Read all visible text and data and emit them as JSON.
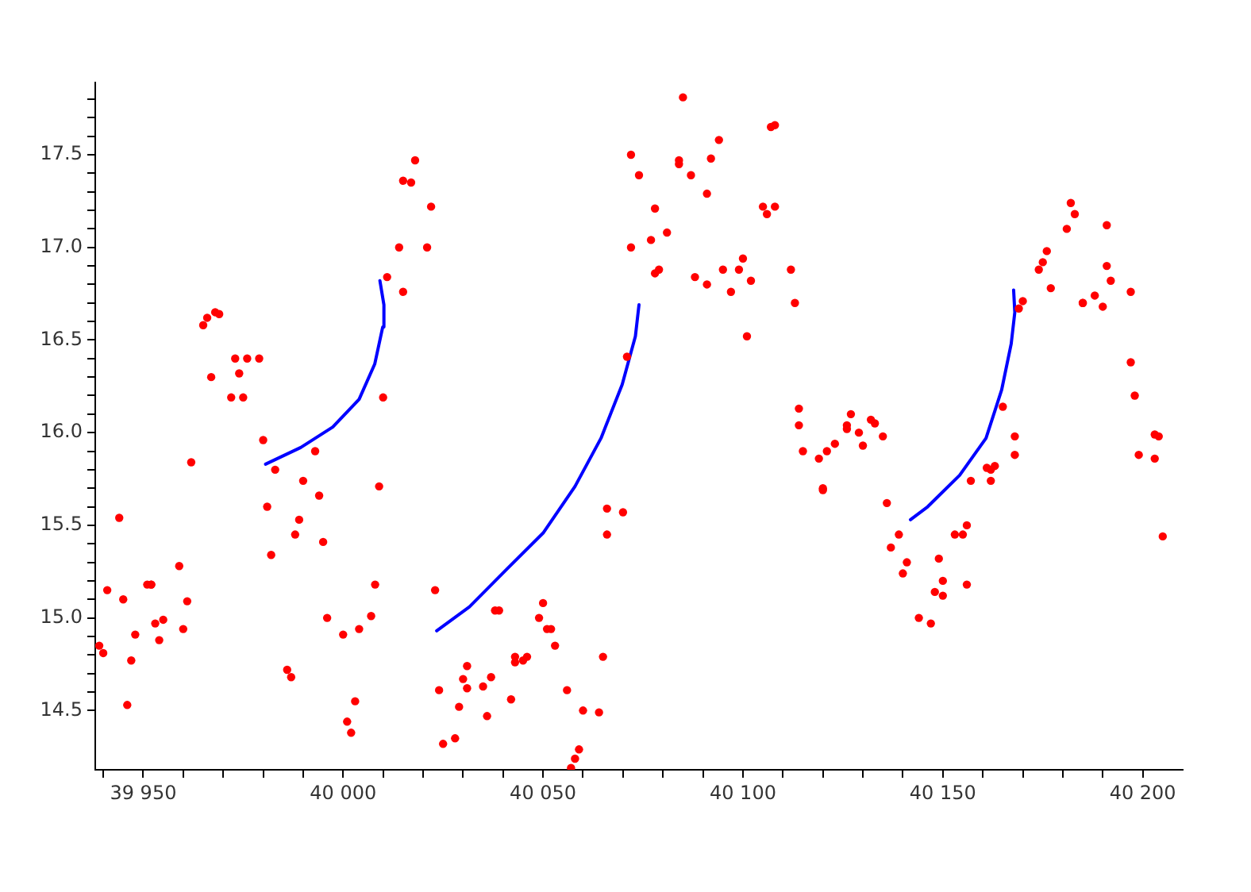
{
  "chart_data": {
    "type": "scatter",
    "xlim": [
      39938,
      40210
    ],
    "ylim": [
      14.18,
      17.89
    ],
    "xticks": [
      {
        "value": 39940,
        "label": null
      },
      {
        "value": 39950,
        "label": "39 950"
      },
      {
        "value": 39960,
        "label": null
      },
      {
        "value": 39970,
        "label": null
      },
      {
        "value": 39980,
        "label": null
      },
      {
        "value": 39990,
        "label": null
      },
      {
        "value": 40000,
        "label": "40 000"
      },
      {
        "value": 40010,
        "label": null
      },
      {
        "value": 40020,
        "label": null
      },
      {
        "value": 40030,
        "label": null
      },
      {
        "value": 40040,
        "label": null
      },
      {
        "value": 40050,
        "label": "40 050"
      },
      {
        "value": 40060,
        "label": null
      },
      {
        "value": 40070,
        "label": null
      },
      {
        "value": 40080,
        "label": null
      },
      {
        "value": 40090,
        "label": null
      },
      {
        "value": 40100,
        "label": "40 100"
      },
      {
        "value": 40110,
        "label": null
      },
      {
        "value": 40120,
        "label": null
      },
      {
        "value": 40130,
        "label": null
      },
      {
        "value": 40140,
        "label": null
      },
      {
        "value": 40150,
        "label": "40 150"
      },
      {
        "value": 40160,
        "label": null
      },
      {
        "value": 40170,
        "label": null
      },
      {
        "value": 40180,
        "label": null
      },
      {
        "value": 40190,
        "label": null
      },
      {
        "value": 40200,
        "label": "40 200"
      }
    ],
    "yticks": [
      {
        "value": 14.5,
        "label": "14.5"
      },
      {
        "value": 14.6,
        "label": null
      },
      {
        "value": 14.7,
        "label": null
      },
      {
        "value": 14.8,
        "label": null
      },
      {
        "value": 14.9,
        "label": null
      },
      {
        "value": 15,
        "label": "15.0"
      },
      {
        "value": 15.1,
        "label": null
      },
      {
        "value": 15.2,
        "label": null
      },
      {
        "value": 15.3,
        "label": null
      },
      {
        "value": 15.4,
        "label": null
      },
      {
        "value": 15.5,
        "label": "15.5"
      },
      {
        "value": 15.6,
        "label": null
      },
      {
        "value": 15.7,
        "label": null
      },
      {
        "value": 15.8,
        "label": null
      },
      {
        "value": 15.9,
        "label": null
      },
      {
        "value": 16,
        "label": "16.0"
      },
      {
        "value": 16.1,
        "label": null
      },
      {
        "value": 16.2,
        "label": null
      },
      {
        "value": 16.3,
        "label": null
      },
      {
        "value": 16.4,
        "label": null
      },
      {
        "value": 16.5,
        "label": "16.5"
      },
      {
        "value": 16.6,
        "label": null
      },
      {
        "value": 16.7,
        "label": null
      },
      {
        "value": 16.8,
        "label": null
      },
      {
        "value": 16.9,
        "label": null
      },
      {
        "value": 17,
        "label": "17.0"
      },
      {
        "value": 17.1,
        "label": null
      },
      {
        "value": 17.2,
        "label": null
      },
      {
        "value": 17.3,
        "label": null
      },
      {
        "value": 17.4,
        "label": null
      },
      {
        "value": 17.5,
        "label": "17.5"
      },
      {
        "value": 17.6,
        "label": null
      },
      {
        "value": 17.7,
        "label": null
      },
      {
        "value": 17.8,
        "label": null
      }
    ],
    "grid": false,
    "legend": false,
    "series": [
      {
        "marker": "circle",
        "color": "#ff0000",
        "x": [
          39939,
          39940,
          39941,
          39944,
          39945,
          39946,
          39947,
          39948,
          39951,
          39952,
          39952,
          39953,
          39954,
          39955,
          39959,
          39960,
          39961,
          39962,
          39965,
          39966,
          39967,
          39968,
          39969,
          39972,
          39973,
          39974,
          39975,
          39976,
          39979,
          39980,
          39981,
          39982,
          39983,
          39986,
          39987,
          39988,
          39989,
          39990,
          39993,
          39994,
          39995,
          39996,
          40000,
          40001,
          40002,
          40003,
          40004,
          40007,
          40008,
          40009,
          40010,
          40011,
          40014,
          40015,
          40015,
          40017,
          40018,
          40021,
          40022,
          40023,
          40024,
          40025,
          40028,
          40029,
          40030,
          40031,
          40031,
          40035,
          40036,
          40037,
          40038,
          40039,
          40042,
          40043,
          40043,
          40045,
          40046,
          40049,
          40050,
          40051,
          40052,
          40053,
          40056,
          40057,
          40058,
          40059,
          40060,
          40064,
          40065,
          40066,
          40066,
          40070,
          40071,
          40072,
          40072,
          40074,
          40077,
          40078,
          40078,
          40079,
          40081,
          40084,
          40084,
          40085,
          40087,
          40088,
          40091,
          40091,
          40092,
          40094,
          40095,
          40097,
          40099,
          40100,
          40101,
          40102,
          40105,
          40106,
          40107,
          40108,
          40108,
          40112,
          40113,
          40114,
          40114,
          40115,
          40119,
          40120,
          40120,
          40121,
          40123,
          40126,
          40126,
          40127,
          40129,
          40130,
          40132,
          40133,
          40135,
          40136,
          40137,
          40139,
          40140,
          40141,
          40144,
          40147,
          40148,
          40149,
          40150,
          40150,
          40153,
          40155,
          40156,
          40156,
          40157,
          40161,
          40162,
          40162,
          40163,
          40165,
          40168,
          40168,
          40169,
          40170,
          40174,
          40175,
          40176,
          40177,
          40181,
          40182,
          40183,
          40185,
          40185,
          40188,
          40190,
          40191,
          40191,
          40192,
          40197,
          40197,
          40198,
          40199,
          40203,
          40203,
          40204,
          40205
        ],
        "values": [
          14.85,
          14.81,
          15.15,
          15.54,
          15.1,
          14.53,
          14.77,
          14.91,
          15.18,
          15.18,
          15.18,
          14.97,
          14.88,
          14.99,
          15.28,
          14.94,
          15.09,
          15.84,
          16.58,
          16.62,
          16.3,
          16.65,
          16.64,
          16.19,
          16.4,
          16.32,
          16.19,
          16.4,
          16.4,
          15.96,
          15.6,
          15.34,
          15.8,
          14.72,
          14.68,
          15.45,
          15.53,
          15.74,
          15.9,
          15.66,
          15.41,
          15.0,
          14.91,
          14.44,
          14.38,
          14.55,
          14.94,
          15.01,
          15.18,
          15.71,
          16.19,
          16.84,
          17.0,
          16.76,
          17.36,
          17.35,
          17.47,
          17.0,
          17.22,
          15.15,
          14.61,
          14.32,
          14.35,
          14.52,
          14.67,
          14.74,
          14.62,
          14.63,
          14.47,
          14.68,
          15.04,
          15.04,
          14.56,
          14.76,
          14.79,
          14.77,
          14.79,
          15.0,
          15.08,
          14.94,
          14.94,
          14.85,
          14.61,
          14.19,
          14.24,
          14.29,
          14.5,
          14.49,
          14.79,
          15.45,
          15.59,
          15.57,
          16.41,
          17.0,
          17.5,
          17.39,
          17.04,
          16.86,
          17.21,
          16.88,
          17.08,
          17.47,
          17.45,
          17.81,
          17.39,
          16.84,
          16.8,
          17.29,
          17.48,
          17.58,
          16.88,
          16.76,
          16.88,
          16.94,
          16.52,
          16.82,
          17.22,
          17.18,
          17.65,
          17.66,
          17.22,
          16.88,
          16.7,
          16.13,
          16.04,
          15.9,
          15.86,
          15.7,
          15.69,
          15.9,
          15.94,
          16.02,
          16.04,
          16.1,
          16.0,
          15.93,
          16.07,
          16.05,
          15.98,
          15.62,
          15.38,
          15.45,
          15.24,
          15.3,
          15.0,
          14.97,
          15.14,
          15.32,
          15.12,
          15.2,
          15.45,
          15.45,
          15.18,
          15.5,
          15.74,
          15.81,
          15.74,
          15.8,
          15.82,
          16.14,
          15.88,
          15.98,
          16.67,
          16.71,
          16.88,
          16.92,
          16.98,
          16.78,
          17.1,
          17.24,
          17.18,
          16.7,
          16.7,
          16.74,
          16.68,
          16.9,
          17.12,
          16.82,
          16.76,
          16.38,
          16.2,
          15.88,
          15.86,
          15.99,
          15.98,
          15.44
        ]
      },
      {
        "type": "line",
        "color": "#0000ff",
        "x": [
          39980.6,
          39989.4,
          39997.4,
          40004.0,
          40007.9,
          40009.9,
          40010.2,
          40009.2
        ],
        "values": [
          15.83,
          15.92,
          16.03,
          16.18,
          16.37,
          16.57,
          16.69,
          16.82
        ]
      },
      {
        "type": "line",
        "color": "#0000ff",
        "x": [
          40023.4,
          40031.6,
          40040.8,
          40050.1,
          40058.0,
          40064.5,
          40069.8,
          40073.1,
          40074.0
        ],
        "values": [
          14.93,
          15.06,
          15.26,
          15.46,
          15.71,
          15.97,
          16.26,
          16.52,
          16.69
        ]
      },
      {
        "type": "line",
        "color": "#0000ff",
        "x": [
          40141.9,
          40146.2,
          40154.2,
          40160.8,
          40164.7,
          40167.1,
          40168.0,
          40167.7
        ],
        "values": [
          15.53,
          15.6,
          15.77,
          15.97,
          16.23,
          16.48,
          16.65,
          16.77
        ]
      }
    ]
  }
}
